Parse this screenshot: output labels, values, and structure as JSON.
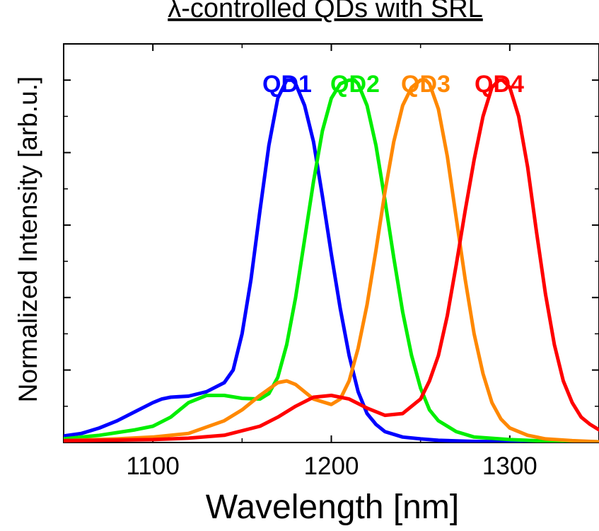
{
  "chart_data": {
    "type": "line",
    "title": "λ-controlled QDs with SRL",
    "xlabel": "Wavelength [nm]",
    "ylabel": "Normalized Intensity [arb.u.]",
    "xlim": [
      1050,
      1350
    ],
    "ylim": [
      0,
      1.1
    ],
    "x_ticks": [
      1100,
      1200,
      1300
    ],
    "x_tick_labels": [
      "1100",
      "1200",
      "1300"
    ],
    "legend_placement": "top-center",
    "grid": false,
    "series": [
      {
        "name": "QD1",
        "color": "#0000ff",
        "x": [
          1050,
          1060,
          1070,
          1080,
          1090,
          1100,
          1105,
          1110,
          1120,
          1130,
          1140,
          1145,
          1150,
          1155,
          1160,
          1165,
          1170,
          1175,
          1178,
          1180,
          1185,
          1190,
          1195,
          1200,
          1205,
          1210,
          1215,
          1220,
          1225,
          1230,
          1240,
          1250,
          1260,
          1280,
          1300,
          1350
        ],
        "y": [
          0.018,
          0.025,
          0.04,
          0.06,
          0.085,
          0.11,
          0.12,
          0.125,
          0.128,
          0.14,
          0.165,
          0.2,
          0.3,
          0.45,
          0.64,
          0.82,
          0.95,
          1.0,
          1.0,
          0.99,
          0.93,
          0.83,
          0.68,
          0.52,
          0.37,
          0.24,
          0.14,
          0.08,
          0.05,
          0.03,
          0.015,
          0.01,
          0.006,
          0.003,
          0.002,
          0.0
        ]
      },
      {
        "name": "QD2",
        "color": "#00ee00",
        "x": [
          1050,
          1070,
          1090,
          1100,
          1110,
          1120,
          1130,
          1140,
          1150,
          1160,
          1165,
          1170,
          1175,
          1180,
          1185,
          1190,
          1195,
          1200,
          1205,
          1210,
          1213,
          1215,
          1220,
          1225,
          1230,
          1235,
          1240,
          1245,
          1250,
          1255,
          1260,
          1270,
          1280,
          1300,
          1320,
          1350
        ],
        "y": [
          0.01,
          0.02,
          0.035,
          0.045,
          0.07,
          0.11,
          0.13,
          0.13,
          0.122,
          0.12,
          0.135,
          0.18,
          0.27,
          0.4,
          0.56,
          0.72,
          0.86,
          0.95,
          0.99,
          1.0,
          1.0,
          0.99,
          0.93,
          0.82,
          0.67,
          0.51,
          0.36,
          0.24,
          0.15,
          0.09,
          0.06,
          0.03,
          0.015,
          0.008,
          0.004,
          0.002
        ]
      },
      {
        "name": "QD3",
        "color": "#ff8800",
        "x": [
          1050,
          1080,
          1100,
          1120,
          1140,
          1150,
          1160,
          1170,
          1175,
          1180,
          1190,
          1200,
          1205,
          1210,
          1215,
          1220,
          1225,
          1230,
          1235,
          1240,
          1245,
          1250,
          1253,
          1255,
          1260,
          1265,
          1270,
          1275,
          1280,
          1285,
          1290,
          1295,
          1300,
          1310,
          1320,
          1335,
          1350
        ],
        "y": [
          0.005,
          0.01,
          0.015,
          0.025,
          0.06,
          0.09,
          0.13,
          0.165,
          0.17,
          0.16,
          0.12,
          0.105,
          0.12,
          0.17,
          0.26,
          0.38,
          0.53,
          0.69,
          0.83,
          0.93,
          0.98,
          1.0,
          1.0,
          0.99,
          0.92,
          0.79,
          0.62,
          0.45,
          0.3,
          0.19,
          0.11,
          0.065,
          0.04,
          0.02,
          0.01,
          0.005,
          0.002
        ]
      },
      {
        "name": "QD4",
        "color": "#ff0000",
        "x": [
          1050,
          1100,
          1120,
          1140,
          1160,
          1170,
          1180,
          1190,
          1200,
          1210,
          1220,
          1230,
          1240,
          1250,
          1255,
          1260,
          1265,
          1270,
          1275,
          1280,
          1285,
          1290,
          1294,
          1296,
          1300,
          1305,
          1310,
          1315,
          1320,
          1325,
          1330,
          1335,
          1340,
          1345,
          1350
        ],
        "y": [
          0.005,
          0.008,
          0.012,
          0.02,
          0.045,
          0.07,
          0.1,
          0.125,
          0.13,
          0.12,
          0.095,
          0.075,
          0.08,
          0.12,
          0.17,
          0.24,
          0.35,
          0.49,
          0.64,
          0.78,
          0.9,
          0.98,
          1.0,
          1.0,
          0.98,
          0.9,
          0.76,
          0.58,
          0.41,
          0.27,
          0.17,
          0.11,
          0.07,
          0.05,
          0.035
        ]
      }
    ]
  }
}
